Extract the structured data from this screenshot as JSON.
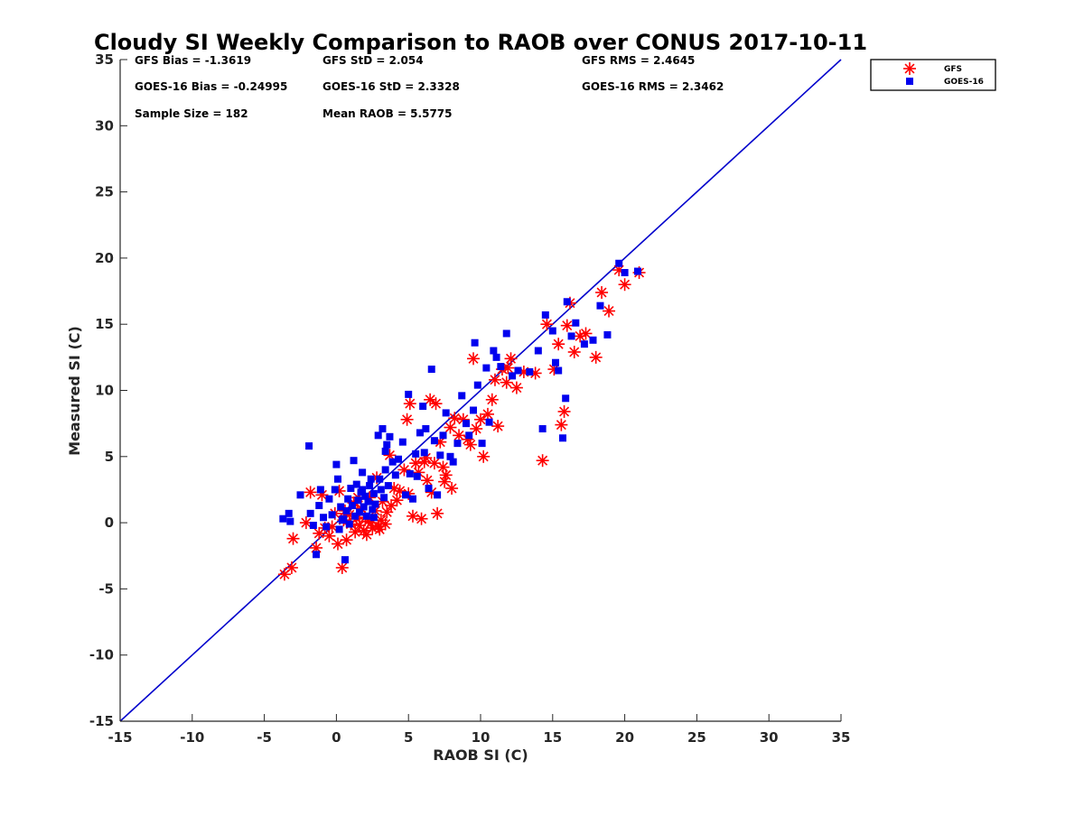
{
  "chart_data": {
    "type": "scatter",
    "title": "Cloudy SI Weekly Comparison to RAOB over CONUS 2017-10-11",
    "xlabel": "RAOB SI (C)",
    "ylabel": "Measured SI (C)",
    "xlim": [
      -15,
      35
    ],
    "ylim": [
      -15,
      35
    ],
    "xticks": [
      -15,
      -10,
      -5,
      0,
      5,
      10,
      15,
      20,
      25,
      30,
      35
    ],
    "yticks": [
      -15,
      -10,
      -5,
      0,
      5,
      10,
      15,
      20,
      25,
      30,
      35
    ],
    "grid": false,
    "legend_position": "top-right, outside plot",
    "annotations": [
      {
        "text": "GFS Bias = -1.3619",
        "row": 0,
        "col": 0
      },
      {
        "text": "GFS StD = 2.054",
        "row": 0,
        "col": 1
      },
      {
        "text": "GFS RMS = 2.4645",
        "row": 0,
        "col": 2
      },
      {
        "text": "GOES-16 Bias = -0.24995",
        "row": 1,
        "col": 0
      },
      {
        "text": "GOES-16 StD = 2.3328",
        "row": 1,
        "col": 1
      },
      {
        "text": "GOES-16 RMS = 2.3462",
        "row": 1,
        "col": 2
      },
      {
        "text": "Sample Size = 182",
        "row": 2,
        "col": 0
      },
      {
        "text": "Mean RAOB = 5.5775",
        "row": 2,
        "col": 1
      }
    ],
    "reference_line": {
      "x": [
        -15,
        35
      ],
      "y": [
        -15,
        35
      ],
      "color": "#0000cc"
    },
    "series": [
      {
        "name": "GFS",
        "marker": "asterisk",
        "color": "#ff0000",
        "points": [
          [
            -3.6,
            -3.9
          ],
          [
            -3.1,
            -3.4
          ],
          [
            -3.0,
            -1.2
          ],
          [
            -2.1,
            0.0
          ],
          [
            -1.8,
            2.3
          ],
          [
            -1.4,
            -1.9
          ],
          [
            -1.2,
            -0.8
          ],
          [
            -1.0,
            2.1
          ],
          [
            -0.8,
            -0.4
          ],
          [
            -0.5,
            -1.0
          ],
          [
            -0.3,
            -0.3
          ],
          [
            -0.1,
            0.7
          ],
          [
            0.1,
            -1.6
          ],
          [
            0.2,
            2.4
          ],
          [
            0.4,
            -3.4
          ],
          [
            0.5,
            0.2
          ],
          [
            0.7,
            -1.3
          ],
          [
            0.9,
            0.6
          ],
          [
            1.0,
            -0.1
          ],
          [
            1.2,
            1.5
          ],
          [
            1.3,
            -0.7
          ],
          [
            1.4,
            0.3
          ],
          [
            1.6,
            -0.2
          ],
          [
            1.7,
            1.1
          ],
          [
            1.9,
            -0.6
          ],
          [
            2.0,
            0.4
          ],
          [
            2.1,
            -0.9
          ],
          [
            2.3,
            1.9
          ],
          [
            2.4,
            0.0
          ],
          [
            2.5,
            -0.4
          ],
          [
            2.7,
            0.9
          ],
          [
            2.8,
            3.4
          ],
          [
            2.9,
            -0.3
          ],
          [
            3.1,
            0.2
          ],
          [
            3.2,
            1.6
          ],
          [
            3.4,
            -0.1
          ],
          [
            3.5,
            0.8
          ],
          [
            3.7,
            5.1
          ],
          [
            3.8,
            1.3
          ],
          [
            4.0,
            2.6
          ],
          [
            4.2,
            1.7
          ],
          [
            4.4,
            2.4
          ],
          [
            4.7,
            4.0
          ],
          [
            4.9,
            7.8
          ],
          [
            5.0,
            2.2
          ],
          [
            5.1,
            9.0
          ],
          [
            5.3,
            0.5
          ],
          [
            5.5,
            4.5
          ],
          [
            5.7,
            3.8
          ],
          [
            5.9,
            0.3
          ],
          [
            6.1,
            4.6
          ],
          [
            6.3,
            3.2
          ],
          [
            6.5,
            9.3
          ],
          [
            6.6,
            2.3
          ],
          [
            6.8,
            4.5
          ],
          [
            6.9,
            9.0
          ],
          [
            7.0,
            0.7
          ],
          [
            7.2,
            6.1
          ],
          [
            7.4,
            4.2
          ],
          [
            7.6,
            3.6
          ],
          [
            7.9,
            7.2
          ],
          [
            8.0,
            2.6
          ],
          [
            8.2,
            7.9
          ],
          [
            8.5,
            6.6
          ],
          [
            8.8,
            7.8
          ],
          [
            9.1,
            6.3
          ],
          [
            9.3,
            5.9
          ],
          [
            9.5,
            12.4
          ],
          [
            9.7,
            7.1
          ],
          [
            10.0,
            7.8
          ],
          [
            10.2,
            5.0
          ],
          [
            10.5,
            8.2
          ],
          [
            10.8,
            9.3
          ],
          [
            11.0,
            10.8
          ],
          [
            11.2,
            7.3
          ],
          [
            11.5,
            11.6
          ],
          [
            11.8,
            10.6
          ],
          [
            12.1,
            12.4
          ],
          [
            12.5,
            10.2
          ],
          [
            13.0,
            11.4
          ],
          [
            13.8,
            11.3
          ],
          [
            14.3,
            4.7
          ],
          [
            14.6,
            15.0
          ],
          [
            15.1,
            11.6
          ],
          [
            15.4,
            13.5
          ],
          [
            15.6,
            7.4
          ],
          [
            15.8,
            8.4
          ],
          [
            16.0,
            14.9
          ],
          [
            16.2,
            16.6
          ],
          [
            16.5,
            12.9
          ],
          [
            16.9,
            14.1
          ],
          [
            17.3,
            14.3
          ],
          [
            18.0,
            12.5
          ],
          [
            18.4,
            17.4
          ],
          [
            18.9,
            16.0
          ],
          [
            19.6,
            19.1
          ],
          [
            20.0,
            18.0
          ],
          [
            21.0,
            18.9
          ],
          [
            2.2,
            0.1
          ],
          [
            1.5,
            1.9
          ],
          [
            0.6,
            0.9
          ],
          [
            3.0,
            -0.5
          ],
          [
            6.2,
            4.9
          ],
          [
            7.5,
            3.1
          ],
          [
            11.9,
            11.7
          ]
        ]
      },
      {
        "name": "GOES-16",
        "marker": "square",
        "color": "#0000ee",
        "points": [
          [
            -3.7,
            0.3
          ],
          [
            -3.3,
            0.7
          ],
          [
            -3.2,
            0.1
          ],
          [
            -2.5,
            2.1
          ],
          [
            -1.9,
            5.8
          ],
          [
            -1.8,
            0.7
          ],
          [
            -1.6,
            -0.2
          ],
          [
            -1.4,
            -2.4
          ],
          [
            -1.2,
            1.3
          ],
          [
            -1.1,
            2.5
          ],
          [
            -0.9,
            0.4
          ],
          [
            -0.7,
            -0.3
          ],
          [
            -0.5,
            1.8
          ],
          [
            -0.3,
            0.6
          ],
          [
            -0.1,
            2.5
          ],
          [
            0.0,
            4.4
          ],
          [
            0.1,
            3.3
          ],
          [
            0.2,
            -0.5
          ],
          [
            0.3,
            1.2
          ],
          [
            0.4,
            0.2
          ],
          [
            0.6,
            -2.8
          ],
          [
            0.7,
            0.9
          ],
          [
            0.8,
            1.8
          ],
          [
            0.9,
            -0.1
          ],
          [
            1.0,
            2.6
          ],
          [
            1.1,
            1.3
          ],
          [
            1.2,
            4.7
          ],
          [
            1.3,
            0.5
          ],
          [
            1.4,
            2.9
          ],
          [
            1.5,
            1.7
          ],
          [
            1.6,
            0.8
          ],
          [
            1.7,
            2.3
          ],
          [
            1.8,
            3.8
          ],
          [
            1.9,
            1.2
          ],
          [
            2.0,
            2.0
          ],
          [
            2.1,
            0.5
          ],
          [
            2.2,
            1.6
          ],
          [
            2.3,
            2.8
          ],
          [
            2.4,
            3.3
          ],
          [
            2.5,
            1.0
          ],
          [
            2.6,
            2.2
          ],
          [
            2.7,
            1.4
          ],
          [
            2.9,
            6.6
          ],
          [
            3.0,
            3.3
          ],
          [
            3.1,
            2.5
          ],
          [
            3.2,
            7.1
          ],
          [
            3.3,
            1.9
          ],
          [
            3.4,
            4.0
          ],
          [
            3.5,
            5.9
          ],
          [
            3.6,
            2.8
          ],
          [
            3.7,
            6.5
          ],
          [
            3.9,
            4.6
          ],
          [
            4.1,
            3.6
          ],
          [
            4.3,
            4.8
          ],
          [
            4.6,
            6.1
          ],
          [
            4.8,
            2.1
          ],
          [
            5.0,
            9.7
          ],
          [
            5.1,
            3.7
          ],
          [
            5.3,
            1.8
          ],
          [
            5.5,
            5.2
          ],
          [
            5.6,
            3.5
          ],
          [
            5.8,
            6.8
          ],
          [
            6.0,
            8.8
          ],
          [
            6.2,
            7.1
          ],
          [
            6.4,
            2.6
          ],
          [
            6.6,
            11.6
          ],
          [
            6.8,
            6.2
          ],
          [
            7.0,
            2.1
          ],
          [
            7.2,
            5.1
          ],
          [
            7.4,
            6.6
          ],
          [
            7.6,
            8.3
          ],
          [
            7.9,
            5.0
          ],
          [
            8.1,
            4.6
          ],
          [
            8.4,
            6.0
          ],
          [
            8.7,
            9.6
          ],
          [
            9.0,
            7.5
          ],
          [
            9.2,
            6.6
          ],
          [
            9.5,
            8.5
          ],
          [
            9.6,
            13.6
          ],
          [
            9.8,
            10.4
          ],
          [
            10.1,
            6.0
          ],
          [
            10.4,
            11.7
          ],
          [
            10.6,
            7.6
          ],
          [
            10.9,
            13.0
          ],
          [
            11.1,
            12.5
          ],
          [
            11.4,
            11.8
          ],
          [
            11.8,
            14.3
          ],
          [
            12.2,
            11.1
          ],
          [
            12.6,
            11.5
          ],
          [
            13.4,
            11.4
          ],
          [
            14.0,
            13.0
          ],
          [
            14.3,
            7.1
          ],
          [
            14.5,
            15.7
          ],
          [
            15.0,
            14.5
          ],
          [
            15.2,
            12.1
          ],
          [
            15.4,
            11.5
          ],
          [
            15.7,
            6.4
          ],
          [
            15.9,
            9.4
          ],
          [
            16.0,
            16.7
          ],
          [
            16.3,
            14.1
          ],
          [
            16.6,
            15.1
          ],
          [
            17.2,
            13.5
          ],
          [
            17.8,
            13.8
          ],
          [
            18.3,
            16.4
          ],
          [
            18.8,
            14.2
          ],
          [
            19.6,
            19.6
          ],
          [
            20.0,
            18.9
          ],
          [
            20.9,
            19.0
          ],
          [
            1.8,
            2.5
          ],
          [
            2.6,
            0.4
          ],
          [
            0.5,
            0.3
          ],
          [
            3.4,
            5.4
          ],
          [
            6.1,
            5.3
          ]
        ]
      }
    ]
  }
}
